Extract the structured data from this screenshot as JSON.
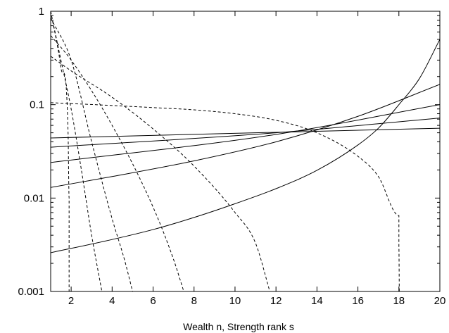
{
  "chart_data": {
    "type": "line",
    "title": "",
    "xlabel": "Wealth n, Strength rank s",
    "ylabel": "",
    "xlim": [
      1,
      20
    ],
    "ylim": [
      0.001,
      1
    ],
    "yscale": "log",
    "grid": false,
    "xticks": [
      2,
      4,
      6,
      8,
      10,
      12,
      14,
      16,
      18,
      20
    ],
    "xtick_labels": [
      "2",
      "4",
      "6",
      "8",
      "10",
      "12",
      "14",
      "16",
      "18",
      "20"
    ],
    "yticks": [
      0.001,
      0.01,
      0.1,
      1
    ],
    "ytick_labels": [
      "0.001",
      "0.01",
      "0.1",
      "1"
    ],
    "series": [
      {
        "style": "solid",
        "x": [
          1,
          20
        ],
        "y": [
          0.044,
          0.056
        ]
      },
      {
        "style": "solid",
        "x": [
          1,
          12,
          20
        ],
        "y": [
          0.035,
          0.05,
          0.072
        ]
      },
      {
        "style": "solid",
        "x": [
          1,
          12,
          20
        ],
        "y": [
          0.024,
          0.048,
          0.1
        ]
      },
      {
        "style": "solid",
        "x": [
          1,
          4,
          8,
          12,
          16,
          20
        ],
        "y": [
          0.013,
          0.017,
          0.025,
          0.04,
          0.075,
          0.165
        ]
      },
      {
        "style": "solid",
        "x": [
          1,
          4,
          6,
          8,
          10,
          12,
          14,
          16,
          17,
          18,
          19,
          20
        ],
        "y": [
          0.0026,
          0.0036,
          0.0046,
          0.0062,
          0.0087,
          0.0126,
          0.0198,
          0.037,
          0.056,
          0.1,
          0.19,
          0.5
        ]
      },
      {
        "style": "dashed",
        "x": [
          1,
          4,
          6,
          8,
          10,
          12,
          14,
          16,
          17,
          18,
          18,
          18.02
        ],
        "y": [
          0.105,
          0.098,
          0.093,
          0.088,
          0.08,
          0.068,
          0.05,
          0.028,
          0.017,
          0.0065,
          0.003,
          0.001
        ]
      },
      {
        "style": "dashed",
        "x": [
          1,
          2,
          4,
          6,
          8,
          10,
          11,
          11.7
        ],
        "y": [
          0.33,
          0.23,
          0.12,
          0.055,
          0.022,
          0.007,
          0.0033,
          0.001
        ]
      },
      {
        "style": "dashed",
        "x": [
          1,
          2,
          4,
          6,
          7,
          7.5
        ],
        "y": [
          0.55,
          0.3,
          0.06,
          0.008,
          0.0022,
          0.001
        ]
      },
      {
        "style": "dashed",
        "x": [
          1,
          2,
          3,
          4,
          4.6,
          5
        ],
        "y": [
          0.85,
          0.3,
          0.04,
          0.006,
          0.0022,
          0.001
        ]
      },
      {
        "style": "dashed",
        "x": [
          1,
          1.5,
          2,
          2.5,
          3,
          3.5
        ],
        "y": [
          1,
          0.3,
          0.09,
          0.02,
          0.004,
          0.001
        ]
      },
      {
        "style": "dashed",
        "x": [
          1,
          1.5,
          1.85,
          1.9,
          1.9
        ],
        "y": [
          1,
          0.25,
          0.05,
          0.01,
          0.001
        ]
      }
    ]
  }
}
